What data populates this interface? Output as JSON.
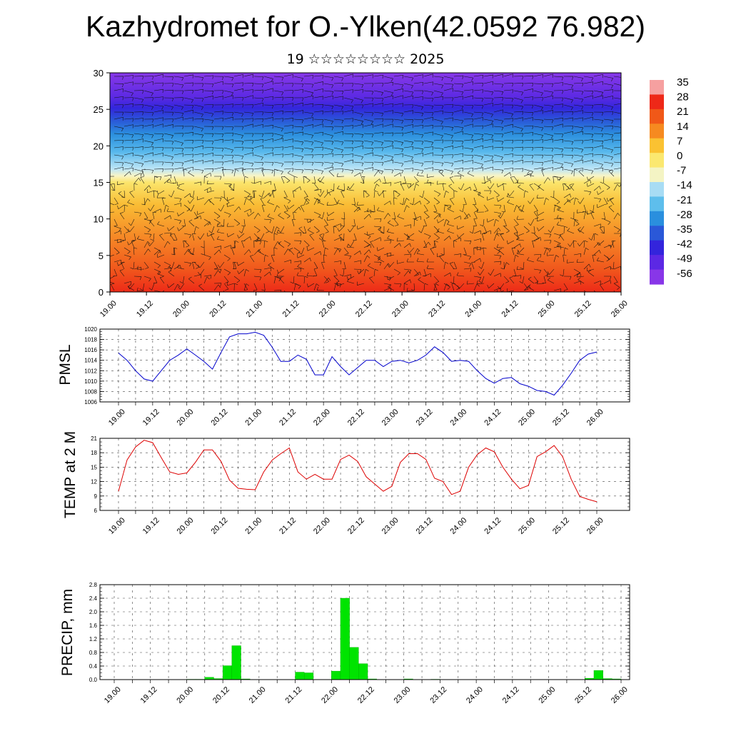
{
  "header": {
    "title": "Kazhydromet for O.-Ylken(42.0592 76.982)",
    "subtitle": "19 ☆☆☆☆☆☆☆☆ 2025"
  },
  "time_ticks": [
    "19.00",
    "19.12",
    "20.00",
    "20.12",
    "21.00",
    "21.12",
    "22.00",
    "22.12",
    "23.00",
    "23.12",
    "24.00",
    "24.12",
    "25.00",
    "25.12",
    "26.00"
  ],
  "chart_data": [
    {
      "type": "heatmap",
      "panel": "upper-air",
      "ylim": [
        0,
        30
      ],
      "yticks": [
        0,
        5,
        10,
        15,
        20,
        25,
        30
      ],
      "colorbar": {
        "labels": [
          "35",
          "28",
          "21",
          "14",
          "7",
          "0",
          "-7",
          "-14",
          "-21",
          "-28",
          "-35",
          "-42",
          "-49",
          "-56"
        ],
        "colors": [
          "#f6a0a0",
          "#ee2818",
          "#f05818",
          "#f68a20",
          "#fac232",
          "#fbe870",
          "#f4f4c4",
          "#a8dcf4",
          "#5ebeec",
          "#2a8fde",
          "#2a58d8",
          "#3324dc",
          "#5c28e4",
          "#8836e8"
        ]
      }
    },
    {
      "type": "line",
      "panel": "pmsl",
      "ylabel": "PMSL",
      "ylim": [
        1006,
        1020
      ],
      "yticks": [
        1006,
        1008,
        1010,
        1012,
        1014,
        1016,
        1018,
        1020
      ],
      "color": "#0000cc",
      "values": [
        1015.4,
        1014.0,
        1012.0,
        1010.4,
        1010.0,
        1012.0,
        1014.0,
        1015.0,
        1016.2,
        1015.0,
        1013.8,
        1012.3,
        1015.5,
        1018.5,
        1019.1,
        1019.1,
        1019.4,
        1018.8,
        1016.5,
        1013.8,
        1013.8,
        1015.0,
        1014.2,
        1011.2,
        1011.2,
        1014.7,
        1012.8,
        1011.2,
        1012.6,
        1014.0,
        1014.0,
        1012.8,
        1013.8,
        1014.0,
        1013.5,
        1014.0,
        1015.0,
        1016.6,
        1015.5,
        1013.8,
        1014.0,
        1013.8,
        1012.0,
        1010.5,
        1009.6,
        1010.5,
        1010.7,
        1009.5,
        1009.0,
        1008.2,
        1008.0,
        1007.3,
        1009.2,
        1011.5,
        1014.0,
        1015.2,
        1015.6
      ]
    },
    {
      "type": "line",
      "panel": "temp2m",
      "ylabel": "TEMP at 2 M",
      "ylim": [
        6,
        21
      ],
      "yticks": [
        6,
        9,
        12,
        15,
        18,
        21
      ],
      "color": "#dd0000",
      "values": [
        10.0,
        16.5,
        19.2,
        20.6,
        20.1,
        17.0,
        14.0,
        13.5,
        13.8,
        16.0,
        18.6,
        18.6,
        16.2,
        12.3,
        10.6,
        10.4,
        10.3,
        14.0,
        16.5,
        17.8,
        19.0,
        14.0,
        12.5,
        13.5,
        12.5,
        12.5,
        16.6,
        17.5,
        16.2,
        13.0,
        11.5,
        10.0,
        11.0,
        16.0,
        17.8,
        17.8,
        16.6,
        12.7,
        12.0,
        9.3,
        10.0,
        15.0,
        17.6,
        19.0,
        18.2,
        15.0,
        12.5,
        10.5,
        11.2,
        17.2,
        18.2,
        19.5,
        17.2,
        12.5,
        8.9,
        8.3,
        7.8
      ]
    },
    {
      "type": "bar",
      "panel": "precip",
      "ylabel": "PRECIP, mm",
      "ylim": [
        0,
        2.8
      ],
      "yticks": [
        "0.0",
        "0.4",
        "0.8",
        "1.2",
        "1.6",
        "2.0",
        "2.4",
        "2.8"
      ],
      "color": "#00e400",
      "values": [
        0,
        0,
        0,
        0,
        0,
        0,
        0,
        0,
        0.01,
        0.01,
        0.07,
        0.03,
        0.41,
        1.0,
        0.02,
        0,
        0,
        0,
        0,
        0,
        0.22,
        0.2,
        0,
        0,
        0.25,
        2.4,
        0.95,
        0.47,
        0.02,
        0,
        0,
        0,
        0.02,
        0,
        0,
        0.01,
        0,
        0,
        0,
        0,
        0,
        0,
        0,
        0,
        0,
        0,
        0,
        0,
        0,
        0,
        0,
        0,
        0.04,
        0.27,
        0.03,
        0.02
      ]
    }
  ]
}
